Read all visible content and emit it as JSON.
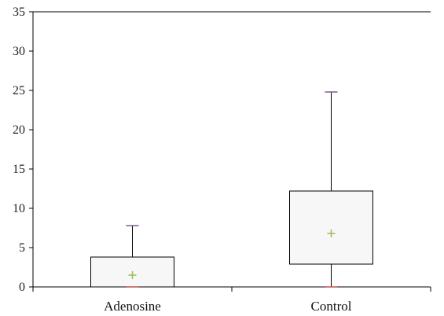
{
  "chart_data": {
    "type": "boxplot",
    "title": "",
    "xlabel": "",
    "ylabel": "",
    "ylim": [
      0,
      35
    ],
    "yticks": [
      0,
      5,
      10,
      15,
      20,
      25,
      30,
      35
    ],
    "yticks_labels": [
      "0",
      "5",
      "10",
      "15",
      "20",
      "25",
      "30",
      "35"
    ],
    "categories": [
      "Adenosine",
      "Control"
    ],
    "boxes": [
      {
        "category": "Adenosine",
        "min": 0,
        "q1": 0,
        "median": 0,
        "q3": 3.8,
        "max": 7.8,
        "mean": 1.5
      },
      {
        "category": "Control",
        "min": 0,
        "q1": 2.9,
        "median": 2.9,
        "q3": 12.2,
        "max": 24.8,
        "mean": 6.8
      }
    ],
    "grid": false,
    "legend": "none",
    "colors": {
      "box_fill": "#f7f7f7",
      "box_stroke": "#000000",
      "whisker_cap": "#7a5a8a",
      "min_marker": "#c0504d",
      "mean_marker": "#9bbb59",
      "axis": "#000000"
    }
  }
}
